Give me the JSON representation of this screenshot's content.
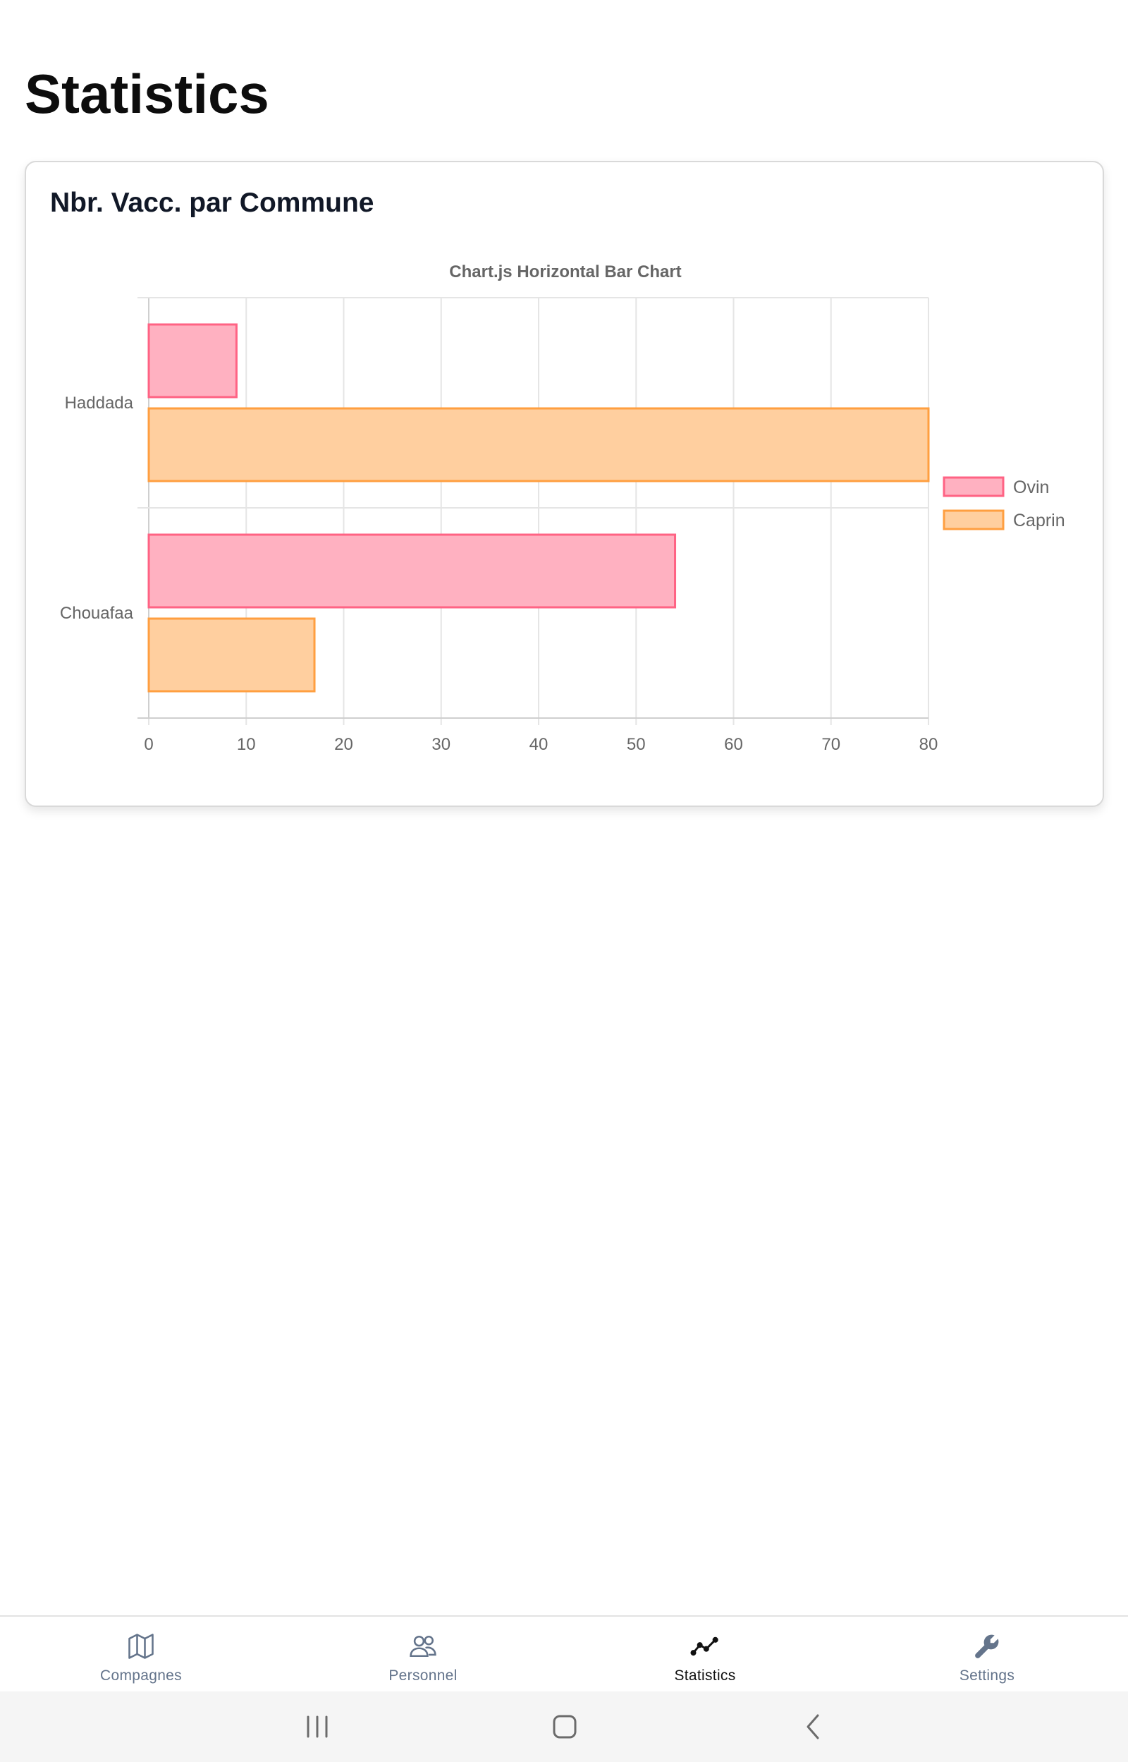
{
  "page": {
    "title": "Statistics"
  },
  "card": {
    "title": "Nbr. Vacc. par Commune"
  },
  "chart_data": {
    "type": "bar",
    "orientation": "horizontal",
    "title": "Chart.js Horizontal Bar Chart",
    "categories": [
      "Haddada",
      "Chouafaa"
    ],
    "series": [
      {
        "name": "Ovin",
        "values": [
          9,
          54
        ],
        "color": "#ff6384",
        "fill": "#ffb1c1"
      },
      {
        "name": "Caprin",
        "values": [
          80,
          17
        ],
        "color": "#ff9f40",
        "fill": "#ffcf9f"
      }
    ],
    "xticks": [
      "0",
      "10",
      "20",
      "30",
      "40",
      "50",
      "60",
      "70",
      "80"
    ],
    "xlim": [
      0,
      80
    ],
    "xlabel": "",
    "ylabel": "",
    "grid": true,
    "legend_position": "right"
  },
  "tabs": [
    {
      "label": "Compagnes",
      "icon": "map-icon",
      "active": false
    },
    {
      "label": "Personnel",
      "icon": "people-icon",
      "active": false
    },
    {
      "label": "Statistics",
      "icon": "trend-line-icon",
      "active": true
    },
    {
      "label": "Settings",
      "icon": "wrench-icon",
      "active": false
    }
  ],
  "system_nav": {
    "recents_icon": "recents-icon",
    "home_icon": "home-icon",
    "back_icon": "back-icon"
  },
  "colors": {
    "text_dark": "#111827",
    "tab_inactive": "#64748b",
    "tab_active": "#111111"
  }
}
